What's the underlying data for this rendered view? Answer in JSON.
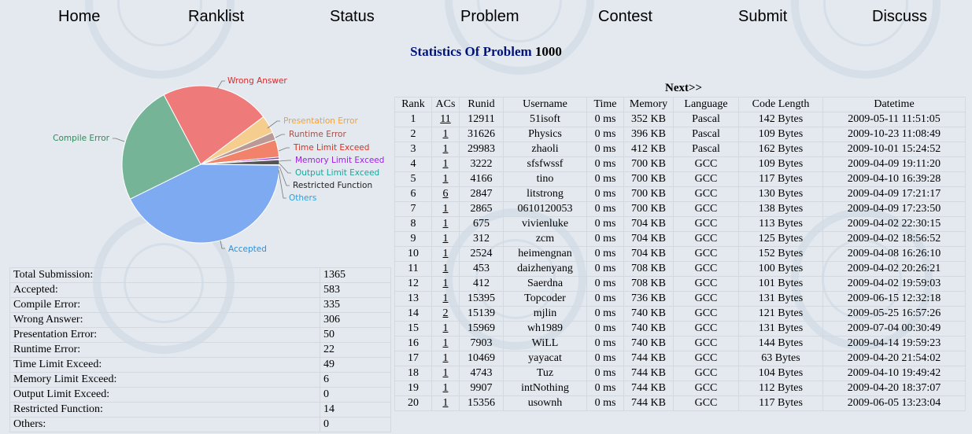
{
  "nav": [
    {
      "label": "Home",
      "name": "nav-home"
    },
    {
      "label": "Ranklist",
      "name": "nav-ranklist"
    },
    {
      "label": "Status",
      "name": "nav-status"
    },
    {
      "label": "Problem",
      "name": "nav-problem"
    },
    {
      "label": "Contest",
      "name": "nav-contest"
    },
    {
      "label": "Submit",
      "name": "nav-submit"
    },
    {
      "label": "Discuss",
      "name": "nav-discuss"
    }
  ],
  "title": {
    "prefix": "Statistics Of Problem",
    "problem_id": "1000"
  },
  "chart_data": {
    "type": "pie",
    "slices": [
      {
        "label": "Accepted",
        "value": 583,
        "color": "#7eaaf2"
      },
      {
        "label": "Compile Error",
        "value": 335,
        "color": "#76b497"
      },
      {
        "label": "Wrong Answer",
        "value": 306,
        "color": "#ef7a7a"
      },
      {
        "label": "Presentation Error",
        "value": 50,
        "color": "#f5cd8e"
      },
      {
        "label": "Runtime Error",
        "value": 22,
        "color": "#b99a96"
      },
      {
        "label": "Time Limit Exceed",
        "value": 49,
        "color": "#f0836a"
      },
      {
        "label": "Memory Limit Exceed",
        "value": 6,
        "color": "#9b3ae0"
      },
      {
        "label": "Output Limit Exceed",
        "value": 0,
        "color": "#1aa59a"
      },
      {
        "label": "Restricted Function",
        "value": 14,
        "color": "#555555"
      },
      {
        "label": "Others",
        "value": 0,
        "color": "#2d9fd9"
      }
    ]
  },
  "summary": [
    {
      "label": "Total Submission:",
      "value": "1365"
    },
    {
      "label": "Accepted:",
      "value": "583"
    },
    {
      "label": "Compile Error:",
      "value": "335"
    },
    {
      "label": "Wrong Answer:",
      "value": "306"
    },
    {
      "label": "Presentation Error:",
      "value": "50"
    },
    {
      "label": "Runtime Error:",
      "value": "22"
    },
    {
      "label": "Time Limit Exceed:",
      "value": "49"
    },
    {
      "label": "Memory Limit Exceed:",
      "value": "6"
    },
    {
      "label": "Output Limit Exceed:",
      "value": "0"
    },
    {
      "label": "Restricted Function:",
      "value": "14"
    },
    {
      "label": "Others:",
      "value": "0"
    }
  ],
  "next_label": "Next>>",
  "ranklist": {
    "headers": [
      "Rank",
      "ACs",
      "Runid",
      "Username",
      "Time",
      "Memory",
      "Language",
      "Code Length",
      "Datetime"
    ],
    "rows": [
      [
        "1",
        "11",
        "12911",
        "51isoft",
        "0 ms",
        "352 KB",
        "Pascal",
        "142 Bytes",
        "2009-05-11 11:51:05"
      ],
      [
        "2",
        "1",
        "31626",
        "Physics",
        "0 ms",
        "396 KB",
        "Pascal",
        "109 Bytes",
        "2009-10-23 11:08:49"
      ],
      [
        "3",
        "1",
        "29983",
        "zhaoli",
        "0 ms",
        "412 KB",
        "Pascal",
        "162 Bytes",
        "2009-10-01 15:24:52"
      ],
      [
        "4",
        "1",
        "3222",
        "sfsfwssf",
        "0 ms",
        "700 KB",
        "GCC",
        "109 Bytes",
        "2009-04-09 19:11:20"
      ],
      [
        "5",
        "1",
        "4166",
        "tino",
        "0 ms",
        "700 KB",
        "GCC",
        "117 Bytes",
        "2009-04-10 16:39:28"
      ],
      [
        "6",
        "6",
        "2847",
        "litstrong",
        "0 ms",
        "700 KB",
        "GCC",
        "130 Bytes",
        "2009-04-09 17:21:17"
      ],
      [
        "7",
        "1",
        "2865",
        "0610120053",
        "0 ms",
        "700 KB",
        "GCC",
        "138 Bytes",
        "2009-04-09 17:23:50"
      ],
      [
        "8",
        "1",
        "675",
        "vivienluke",
        "0 ms",
        "704 KB",
        "GCC",
        "113 Bytes",
        "2009-04-02 22:30:15"
      ],
      [
        "9",
        "1",
        "312",
        "zcm",
        "0 ms",
        "704 KB",
        "GCC",
        "125 Bytes",
        "2009-04-02 18:56:52"
      ],
      [
        "10",
        "1",
        "2524",
        "heimengnan",
        "0 ms",
        "704 KB",
        "GCC",
        "152 Bytes",
        "2009-04-08 16:26:10"
      ],
      [
        "11",
        "1",
        "453",
        "daizhenyang",
        "0 ms",
        "708 KB",
        "GCC",
        "100 Bytes",
        "2009-04-02 20:26:21"
      ],
      [
        "12",
        "1",
        "412",
        "Saerdna",
        "0 ms",
        "708 KB",
        "GCC",
        "101 Bytes",
        "2009-04-02 19:59:03"
      ],
      [
        "13",
        "1",
        "15395",
        "Topcoder",
        "0 ms",
        "736 KB",
        "GCC",
        "131 Bytes",
        "2009-06-15 12:32:18"
      ],
      [
        "14",
        "2",
        "15139",
        "mjlin",
        "0 ms",
        "740 KB",
        "GCC",
        "121 Bytes",
        "2009-05-25 16:57:26"
      ],
      [
        "15",
        "1",
        "15969",
        "wh1989",
        "0 ms",
        "740 KB",
        "GCC",
        "131 Bytes",
        "2009-07-04 00:30:49"
      ],
      [
        "16",
        "1",
        "7903",
        "WiLL",
        "0 ms",
        "740 KB",
        "GCC",
        "144 Bytes",
        "2009-04-14 19:59:23"
      ],
      [
        "17",
        "1",
        "10469",
        "yayacat",
        "0 ms",
        "744 KB",
        "GCC",
        "63 Bytes",
        "2009-04-20 21:54:02"
      ],
      [
        "18",
        "1",
        "4743",
        "Tuz",
        "0 ms",
        "744 KB",
        "GCC",
        "104 Bytes",
        "2009-04-10 19:49:42"
      ],
      [
        "19",
        "1",
        "9907",
        "intNothing",
        "0 ms",
        "744 KB",
        "GCC",
        "112 Bytes",
        "2009-04-20 18:37:07"
      ],
      [
        "20",
        "1",
        "15356",
        "usownh",
        "0 ms",
        "744 KB",
        "GCC",
        "117 Bytes",
        "2009-06-05 13:23:04"
      ]
    ]
  }
}
